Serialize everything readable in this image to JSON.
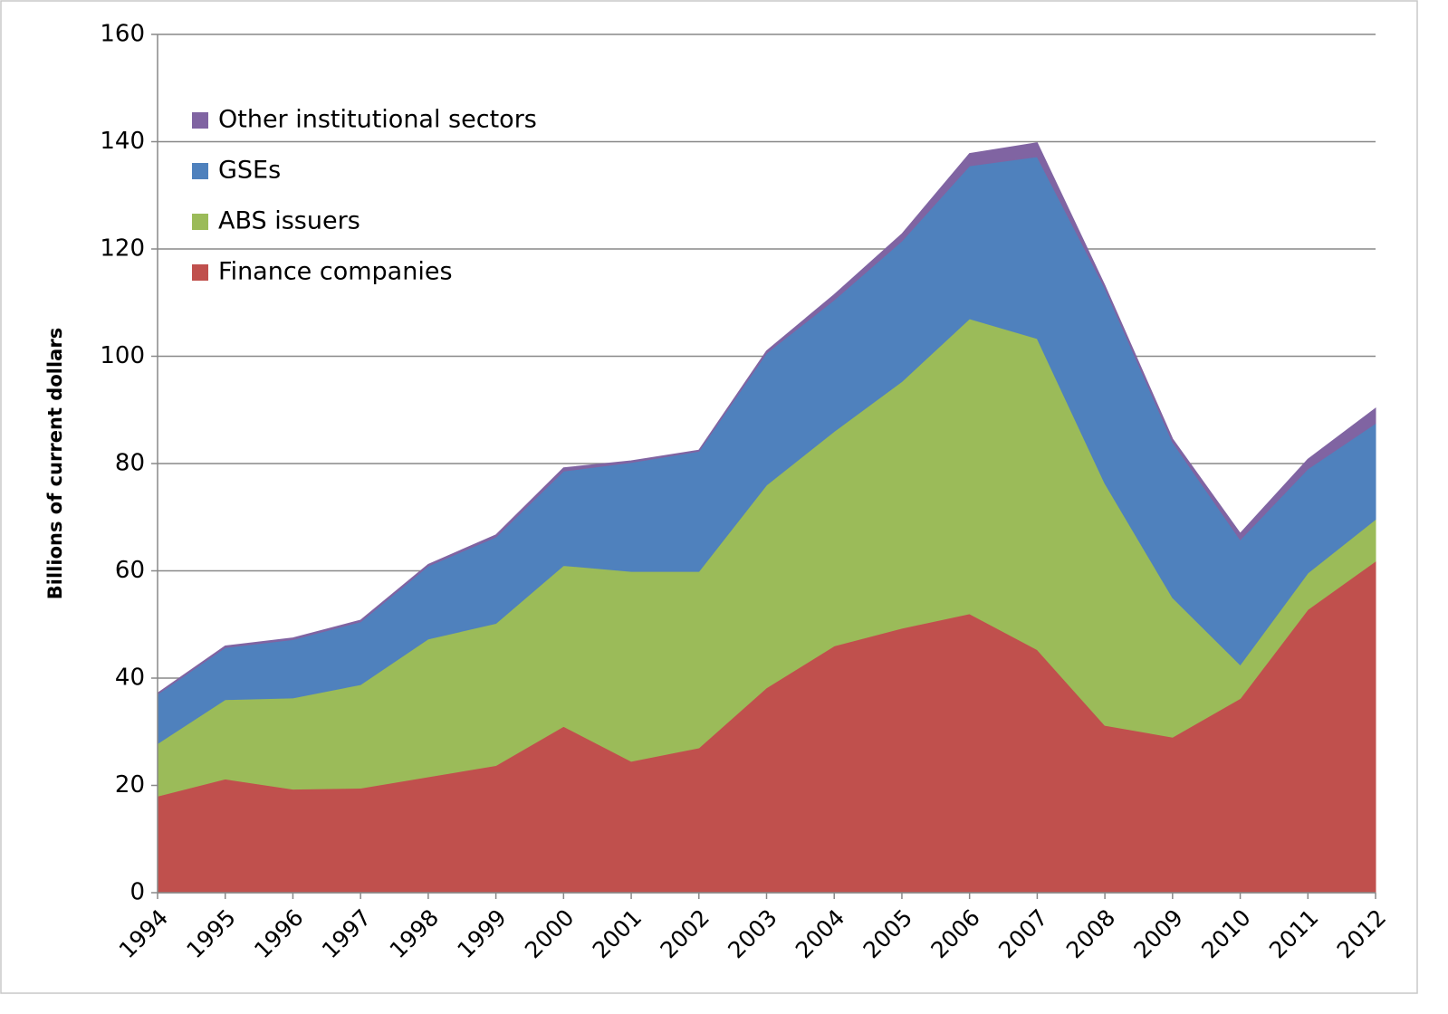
{
  "chart_data": {
    "type": "stacked_area",
    "y_label": "Billions of current dollars",
    "categories": [
      "1994",
      "1995",
      "1996",
      "1997",
      "1998",
      "1999",
      "2000",
      "2001",
      "2002",
      "2003",
      "2004",
      "2005",
      "2006",
      "2007",
      "2008",
      "2009",
      "2010",
      "2011",
      "2012"
    ],
    "series": [
      {
        "name": "Finance companies",
        "color": "#c0504d",
        "values": [
          18,
          21.2,
          19.3,
          19.5,
          21.6,
          23.7,
          31,
          24.5,
          27,
          38.2,
          46,
          49.3,
          52,
          45.3,
          31.2,
          29,
          36.2,
          52.8,
          61.8
        ]
      },
      {
        "name": "ABS issuers",
        "color": "#9bbb59",
        "values": [
          9.8,
          14.8,
          17,
          19.3,
          25.7,
          26.5,
          30,
          35.4,
          32.9,
          37.8,
          40,
          46,
          55,
          58,
          45.1,
          26,
          6.3,
          6.8,
          7.8
        ]
      },
      {
        "name": "GSEs",
        "color": "#4f81bd",
        "values": [
          9.2,
          9.7,
          10.9,
          11.7,
          13.6,
          16.1,
          17.6,
          20.3,
          22.4,
          24.6,
          24.5,
          26.2,
          28.5,
          33.9,
          36.4,
          29,
          23.3,
          19.4,
          17.9
        ]
      },
      {
        "name": "Other institutional sectors",
        "color": "#8064a2",
        "values": [
          0.2,
          0.3,
          0.3,
          0.3,
          0.3,
          0.4,
          0.6,
          0.3,
          0.2,
          0.4,
          1,
          1.3,
          2.3,
          2.6,
          0.5,
          0.6,
          1.2,
          1.8,
          2.8
        ]
      }
    ],
    "ylim": [
      0,
      160
    ],
    "yticks": [
      0,
      20,
      40,
      60,
      80,
      100,
      120,
      140,
      160
    ],
    "grid": true,
    "legend": "upper-left"
  }
}
